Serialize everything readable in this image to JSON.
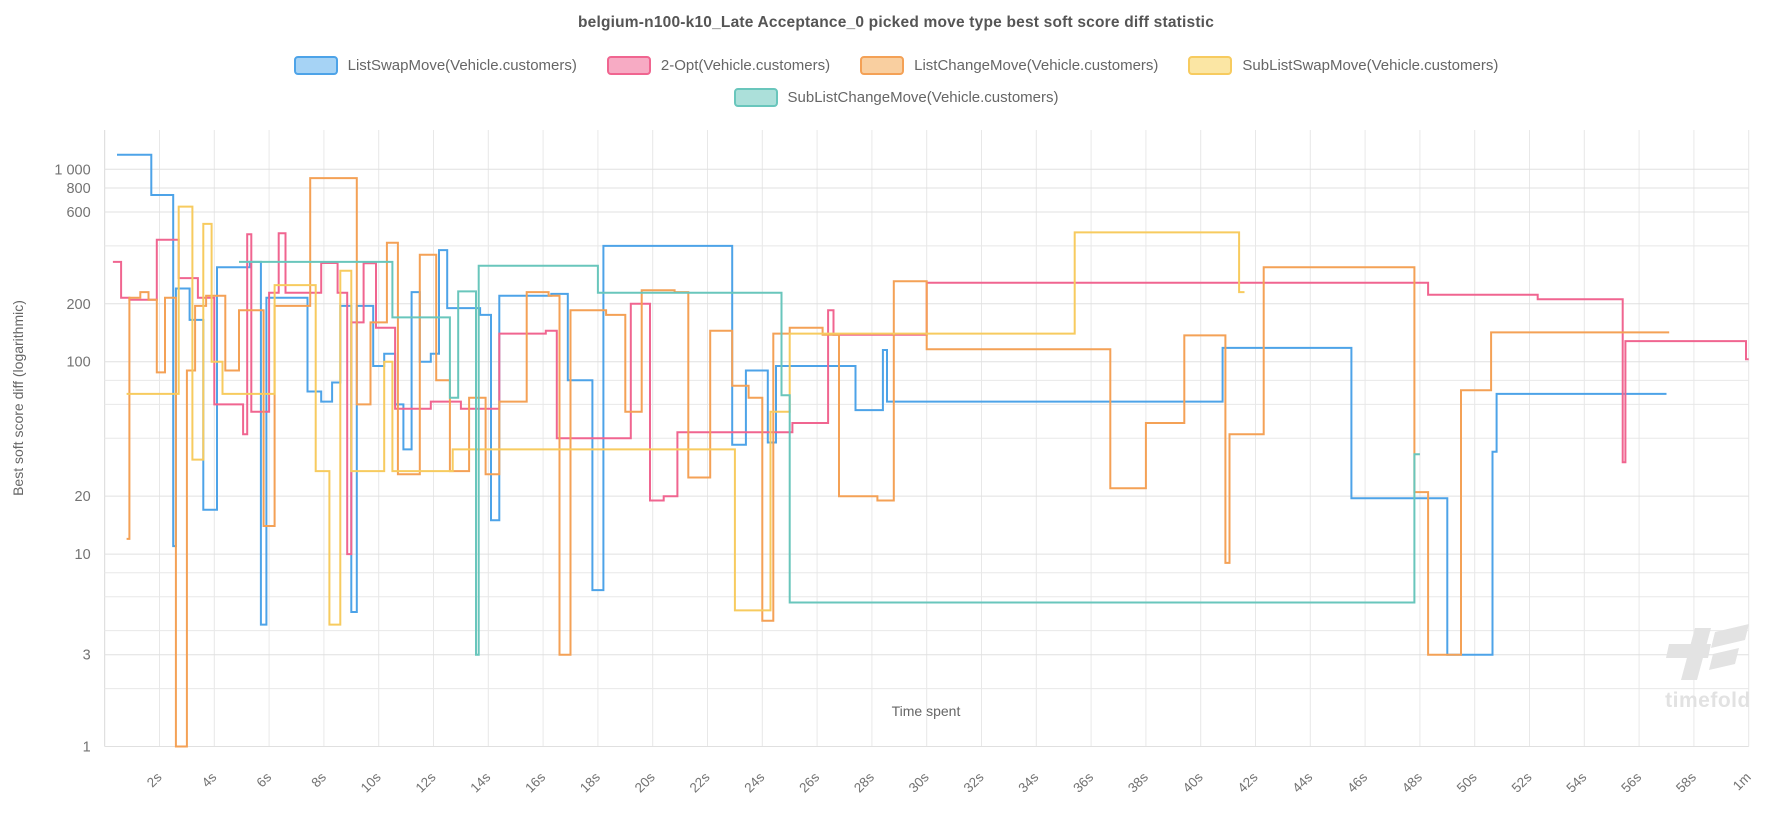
{
  "title": "belgium-n100-k10_Late Acceptance_0 picked move type best soft score diff statistic",
  "watermark": {
    "text": "timefold",
    "logo_icon": "timefold-logo-icon",
    "color": "#e3e3e3"
  },
  "legend": {
    "items": [
      {
        "label": "ListSwapMove(Vehicle.customers)",
        "fill": "#a6d3f5",
        "stroke": "#4da3e8"
      },
      {
        "label": "2-Opt(Vehicle.customers)",
        "fill": "#f7abc4",
        "stroke": "#f06590"
      },
      {
        "label": "ListChangeMove(Vehicle.customers)",
        "fill": "#f9cfa0",
        "stroke": "#f4a156"
      },
      {
        "label": "SubListSwapMove(Vehicle.customers)",
        "fill": "#fbe6a4",
        "stroke": "#f7cb5f"
      },
      {
        "label": "SubListChangeMove(Vehicle.customers)",
        "fill": "#ace0da",
        "stroke": "#69c6bc"
      }
    ]
  },
  "chart_data": {
    "type": "line",
    "subtype": "step-after",
    "title": "belgium-n100-k10_Late Acceptance_0 picked move type best soft score diff statistic",
    "xlabel": "Time spent",
    "ylabel": "Best soft score diff (logarithmic)",
    "x_unit": "seconds",
    "xlim": [
      0,
      60
    ],
    "ylim": [
      1,
      1200
    ],
    "yscale": "log",
    "grid": true,
    "legend_position": "top",
    "grid_color": "#e8e8e8",
    "tick_color": "#737373",
    "x_ticks": [
      {
        "t": 2,
        "label": "2s"
      },
      {
        "t": 4,
        "label": "4s"
      },
      {
        "t": 6,
        "label": "6s"
      },
      {
        "t": 8,
        "label": "8s"
      },
      {
        "t": 10,
        "label": "10s"
      },
      {
        "t": 12,
        "label": "12s"
      },
      {
        "t": 14,
        "label": "14s"
      },
      {
        "t": 16,
        "label": "16s"
      },
      {
        "t": 18,
        "label": "18s"
      },
      {
        "t": 20,
        "label": "20s"
      },
      {
        "t": 22,
        "label": "22s"
      },
      {
        "t": 24,
        "label": "24s"
      },
      {
        "t": 26,
        "label": "26s"
      },
      {
        "t": 28,
        "label": "28s"
      },
      {
        "t": 30,
        "label": "30s"
      },
      {
        "t": 32,
        "label": "32s"
      },
      {
        "t": 34,
        "label": "34s"
      },
      {
        "t": 36,
        "label": "36s"
      },
      {
        "t": 38,
        "label": "38s"
      },
      {
        "t": 40,
        "label": "40s"
      },
      {
        "t": 42,
        "label": "42s"
      },
      {
        "t": 44,
        "label": "44s"
      },
      {
        "t": 46,
        "label": "46s"
      },
      {
        "t": 48,
        "label": "48s"
      },
      {
        "t": 50,
        "label": "50s"
      },
      {
        "t": 52,
        "label": "52s"
      },
      {
        "t": 54,
        "label": "54s"
      },
      {
        "t": 56,
        "label": "56s"
      },
      {
        "t": 58,
        "label": "58s"
      },
      {
        "t": 60,
        "label": "1m"
      }
    ],
    "y_ticks": [
      {
        "v": 1,
        "label": "1"
      },
      {
        "v": 2,
        "label": ""
      },
      {
        "v": 3,
        "label": "3"
      },
      {
        "v": 4,
        "label": ""
      },
      {
        "v": 6,
        "label": ""
      },
      {
        "v": 8,
        "label": ""
      },
      {
        "v": 10,
        "label": "10"
      },
      {
        "v": 20,
        "label": "20"
      },
      {
        "v": 40,
        "label": ""
      },
      {
        "v": 60,
        "label": ""
      },
      {
        "v": 80,
        "label": ""
      },
      {
        "v": 100,
        "label": "100"
      },
      {
        "v": 200,
        "label": "200"
      },
      {
        "v": 400,
        "label": ""
      },
      {
        "v": 600,
        "label": "600"
      },
      {
        "v": 800,
        "label": "800"
      },
      {
        "v": 1000,
        "label": "1 000"
      }
    ],
    "series": [
      {
        "name": "ListSwapMove(Vehicle.customers)",
        "color": "#4da3e8",
        "points": [
          [
            0.45,
            1190
          ],
          [
            1.7,
            735
          ],
          [
            2.5,
            11
          ],
          [
            2.6,
            240
          ],
          [
            3.1,
            165
          ],
          [
            3.6,
            17
          ],
          [
            4.1,
            310
          ],
          [
            5.3,
            330
          ],
          [
            5.7,
            4.3
          ],
          [
            5.9,
            215
          ],
          [
            6.9,
            215
          ],
          [
            7.4,
            70
          ],
          [
            7.9,
            62
          ],
          [
            8.3,
            78
          ],
          [
            8.6,
            195
          ],
          [
            9.0,
            5
          ],
          [
            9.2,
            195
          ],
          [
            9.8,
            95
          ],
          [
            10.2,
            110
          ],
          [
            10.6,
            60
          ],
          [
            10.9,
            35
          ],
          [
            11.2,
            230
          ],
          [
            11.5,
            100
          ],
          [
            11.9,
            110
          ],
          [
            12.2,
            380
          ],
          [
            12.5,
            190
          ],
          [
            13.7,
            175
          ],
          [
            14.1,
            15
          ],
          [
            14.4,
            220
          ],
          [
            16.3,
            225
          ],
          [
            16.9,
            80
          ],
          [
            17.8,
            6.5
          ],
          [
            18.2,
            400
          ],
          [
            22.9,
            37
          ],
          [
            23.4,
            90
          ],
          [
            24.2,
            38
          ],
          [
            24.5,
            95
          ],
          [
            27.4,
            56
          ],
          [
            28.4,
            115
          ],
          [
            28.55,
            62
          ],
          [
            40.8,
            118
          ],
          [
            45.5,
            19.5
          ],
          [
            49.0,
            3
          ],
          [
            50.65,
            34
          ],
          [
            50.8,
            68
          ],
          [
            57.0,
            68
          ]
        ]
      },
      {
        "name": "2-Opt(Vehicle.customers)",
        "color": "#f06590",
        "points": [
          [
            0.3,
            330
          ],
          [
            0.6,
            215
          ],
          [
            0.9,
            210
          ],
          [
            1.9,
            430
          ],
          [
            2.7,
            272
          ],
          [
            3.4,
            215
          ],
          [
            4.0,
            60
          ],
          [
            5.05,
            42
          ],
          [
            5.2,
            460
          ],
          [
            5.35,
            55
          ],
          [
            6.0,
            228
          ],
          [
            6.35,
            465
          ],
          [
            6.6,
            228
          ],
          [
            7.9,
            326
          ],
          [
            8.5,
            228
          ],
          [
            8.85,
            10
          ],
          [
            9.0,
            160
          ],
          [
            9.45,
            325
          ],
          [
            9.9,
            150
          ],
          [
            10.6,
            57
          ],
          [
            11.9,
            62
          ],
          [
            13.0,
            57
          ],
          [
            14.4,
            140
          ],
          [
            16.1,
            145
          ],
          [
            16.5,
            40
          ],
          [
            19.2,
            200
          ],
          [
            19.9,
            19
          ],
          [
            20.4,
            20
          ],
          [
            20.9,
            43
          ],
          [
            25.1,
            48
          ],
          [
            26.4,
            185
          ],
          [
            26.6,
            138
          ],
          [
            30.0,
            257
          ],
          [
            48.3,
            223
          ],
          [
            52.3,
            211
          ],
          [
            55.4,
            30
          ],
          [
            55.5,
            128
          ],
          [
            59.9,
            103
          ],
          [
            60.0,
            103
          ]
        ]
      },
      {
        "name": "ListChangeMove(Vehicle.customers)",
        "color": "#f4a156",
        "points": [
          [
            0.8,
            12
          ],
          [
            0.9,
            215
          ],
          [
            1.3,
            230
          ],
          [
            1.6,
            210
          ],
          [
            1.9,
            88
          ],
          [
            2.2,
            215
          ],
          [
            2.6,
            1
          ],
          [
            3.0,
            90
          ],
          [
            3.3,
            195
          ],
          [
            3.7,
            220
          ],
          [
            4.4,
            90
          ],
          [
            4.9,
            185
          ],
          [
            5.8,
            14
          ],
          [
            6.2,
            195
          ],
          [
            7.5,
            900
          ],
          [
            9.2,
            60
          ],
          [
            9.7,
            160
          ],
          [
            10.3,
            415
          ],
          [
            10.7,
            26
          ],
          [
            11.5,
            360
          ],
          [
            12.1,
            80
          ],
          [
            12.6,
            27
          ],
          [
            13.3,
            65
          ],
          [
            13.9,
            26
          ],
          [
            14.4,
            62
          ],
          [
            15.4,
            230
          ],
          [
            16.2,
            220
          ],
          [
            16.6,
            3
          ],
          [
            17.0,
            185
          ],
          [
            18.3,
            175
          ],
          [
            19.0,
            55
          ],
          [
            19.6,
            235
          ],
          [
            20.8,
            230
          ],
          [
            21.3,
            25
          ],
          [
            22.1,
            145
          ],
          [
            22.9,
            75
          ],
          [
            23.5,
            65
          ],
          [
            24.0,
            4.5
          ],
          [
            24.4,
            140
          ],
          [
            25.0,
            150
          ],
          [
            26.2,
            138
          ],
          [
            26.8,
            20
          ],
          [
            28.2,
            19
          ],
          [
            28.8,
            262
          ],
          [
            30.0,
            116
          ],
          [
            36.7,
            22
          ],
          [
            38.0,
            48
          ],
          [
            39.4,
            137
          ],
          [
            40.9,
            9
          ],
          [
            41.05,
            42
          ],
          [
            42.3,
            310
          ],
          [
            47.8,
            21
          ],
          [
            48.3,
            3
          ],
          [
            49.5,
            71
          ],
          [
            50.6,
            142
          ],
          [
            57.1,
            142
          ]
        ]
      },
      {
        "name": "SubListSwapMove(Vehicle.customers)",
        "color": "#f7cb5f",
        "points": [
          [
            0.8,
            68
          ],
          [
            2.7,
            640
          ],
          [
            3.2,
            31
          ],
          [
            3.6,
            520
          ],
          [
            3.9,
            100
          ],
          [
            4.3,
            68
          ],
          [
            6.2,
            250
          ],
          [
            7.7,
            27
          ],
          [
            8.2,
            4.3
          ],
          [
            8.6,
            297
          ],
          [
            9.0,
            27
          ],
          [
            10.2,
            100
          ],
          [
            10.5,
            27
          ],
          [
            12.7,
            35
          ],
          [
            21.2,
            35
          ],
          [
            23.0,
            5.1
          ],
          [
            24.3,
            55
          ],
          [
            25.0,
            140
          ],
          [
            35.4,
            470
          ],
          [
            41.4,
            230
          ],
          [
            41.6,
            230
          ]
        ]
      },
      {
        "name": "SubListChangeMove(Vehicle.customers)",
        "color": "#69c6bc",
        "points": [
          [
            4.9,
            330
          ],
          [
            10.5,
            170
          ],
          [
            12.6,
            65
          ],
          [
            12.9,
            232
          ],
          [
            13.55,
            3
          ],
          [
            13.65,
            315
          ],
          [
            18.0,
            228
          ],
          [
            24.7,
            67
          ],
          [
            25.0,
            5.6
          ],
          [
            47.8,
            33
          ],
          [
            48.0,
            33
          ]
        ]
      }
    ]
  }
}
